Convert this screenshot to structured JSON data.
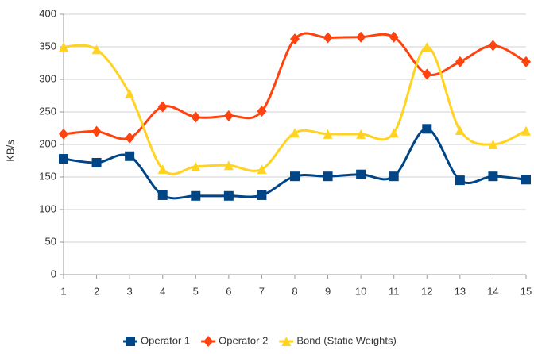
{
  "chart_data": {
    "type": "line",
    "y_label": "KB/s",
    "x": [
      1,
      2,
      3,
      4,
      5,
      6,
      7,
      8,
      9,
      10,
      11,
      12,
      13,
      14,
      15
    ],
    "xlim": [
      1,
      15
    ],
    "xticks": [
      1,
      2,
      3,
      4,
      5,
      6,
      7,
      8,
      9,
      10,
      11,
      12,
      13,
      14,
      15
    ],
    "ylim": [
      0,
      400
    ],
    "yticks": [
      0,
      50,
      100,
      150,
      200,
      250,
      300,
      350,
      400
    ],
    "grid": true,
    "legend": "bottom",
    "series": [
      {
        "name": "Operator 1",
        "color": "#004586",
        "marker": "square",
        "values": [
          178,
          172,
          182,
          122,
          121,
          121,
          122,
          151,
          151,
          154,
          151,
          224,
          145,
          151,
          146
        ]
      },
      {
        "name": "Operator 2",
        "color": "#ff420e",
        "marker": "diamond",
        "values": [
          216,
          220,
          210,
          258,
          242,
          244,
          251,
          362,
          364,
          365,
          365,
          308,
          327,
          352,
          327
        ]
      },
      {
        "name": "Bond (Static Weights)",
        "color": "#ffd320",
        "marker": "triangle",
        "values": [
          350,
          346,
          278,
          162,
          166,
          168,
          162,
          218,
          216,
          216,
          218,
          350,
          222,
          200,
          221
        ]
      }
    ]
  }
}
